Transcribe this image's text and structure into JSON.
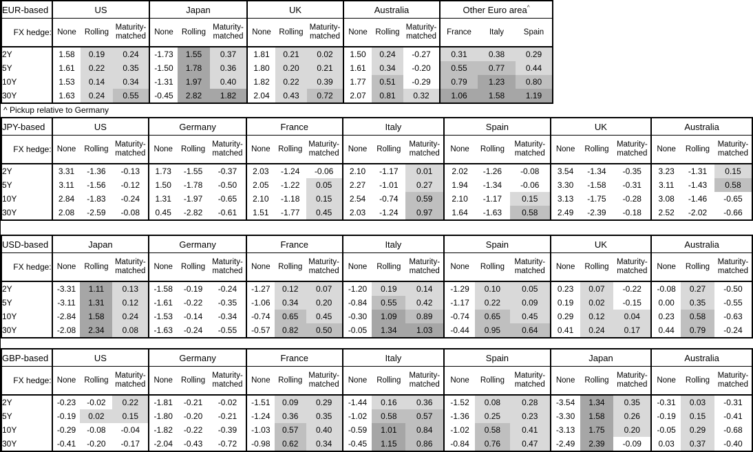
{
  "footnote": "^ Pickup relative to Germany",
  "labels": {
    "fx_hedge": "FX hedge:",
    "tenors": [
      "2Y",
      "5Y",
      "10Y",
      "30Y"
    ]
  },
  "colors": {
    "shade_low": "#d9d9d9",
    "shade_mid": "#bfbfbf",
    "shade_high": "#a6a6a6",
    "border": "#000000",
    "background": "#ffffff"
  },
  "tables": [
    {
      "base": "EUR-based",
      "groups": [
        {
          "name": "US",
          "cols": [
            "None",
            "Rolling",
            "Maturity-matched"
          ],
          "rows": [
            [
              "1.58",
              "0.19",
              "0.24"
            ],
            [
              "1.61",
              "0.22",
              "0.35"
            ],
            [
              "1.53",
              "0.14",
              "0.34"
            ],
            [
              "1.63",
              "0.24",
              "0.55"
            ]
          ]
        },
        {
          "name": "Japan",
          "cols": [
            "None",
            "Rolling",
            "Maturity-matched"
          ],
          "rows": [
            [
              "-1.73",
              "1.55",
              "0.37"
            ],
            [
              "-1.50",
              "1.78",
              "0.36"
            ],
            [
              "-1.31",
              "1.97",
              "0.40"
            ],
            [
              "-0.45",
              "2.82",
              "1.82"
            ]
          ]
        },
        {
          "name": "UK",
          "cols": [
            "None",
            "Rolling",
            "Maturity-matched"
          ],
          "rows": [
            [
              "1.81",
              "0.21",
              "0.02"
            ],
            [
              "1.80",
              "0.20",
              "0.21"
            ],
            [
              "1.82",
              "0.22",
              "0.39"
            ],
            [
              "2.04",
              "0.43",
              "0.72"
            ]
          ]
        },
        {
          "name": "Australia",
          "cols": [
            "None",
            "Rolling",
            "Maturity-matched"
          ],
          "rows": [
            [
              "1.50",
              "0.24",
              "-0.27"
            ],
            [
              "1.61",
              "0.34",
              "-0.20"
            ],
            [
              "1.77",
              "0.51",
              "-0.29"
            ],
            [
              "2.07",
              "0.81",
              "0.32"
            ]
          ]
        },
        {
          "name": "Other Euro area",
          "sup": "^",
          "cols": [
            "France",
            "Italy",
            "Spain"
          ],
          "rows": [
            [
              "0.31",
              "0.38",
              "0.29"
            ],
            [
              "0.55",
              "0.77",
              "0.44"
            ],
            [
              "0.79",
              "1.23",
              "0.80"
            ],
            [
              "1.06",
              "1.58",
              "1.19"
            ]
          ]
        }
      ]
    },
    {
      "base": "JPY-based",
      "groups": [
        {
          "name": "US",
          "cols": [
            "None",
            "Rolling",
            "Maturity-matched"
          ],
          "rows": [
            [
              "3.31",
              "-1.36",
              "-0.13"
            ],
            [
              "3.11",
              "-1.56",
              "-0.12"
            ],
            [
              "2.84",
              "-1.83",
              "-0.24"
            ],
            [
              "2.08",
              "-2.59",
              "-0.08"
            ]
          ]
        },
        {
          "name": "Germany",
          "cols": [
            "None",
            "Rolling",
            "Maturity-matched"
          ],
          "rows": [
            [
              "1.73",
              "-1.55",
              "-0.37"
            ],
            [
              "1.50",
              "-1.78",
              "-0.50"
            ],
            [
              "1.31",
              "-1.97",
              "-0.65"
            ],
            [
              "0.45",
              "-2.82",
              "-0.61"
            ]
          ]
        },
        {
          "name": "France",
          "cols": [
            "None",
            "Rolling",
            "Maturity-matched"
          ],
          "rows": [
            [
              "2.03",
              "-1.24",
              "-0.06"
            ],
            [
              "2.05",
              "-1.22",
              "0.05"
            ],
            [
              "2.10",
              "-1.18",
              "0.15"
            ],
            [
              "1.51",
              "-1.77",
              "0.45"
            ]
          ]
        },
        {
          "name": "Italy",
          "cols": [
            "None",
            "Rolling",
            "Maturity-matched"
          ],
          "rows": [
            [
              "2.10",
              "-1.17",
              "0.01"
            ],
            [
              "2.27",
              "-1.01",
              "0.27"
            ],
            [
              "2.54",
              "-0.74",
              "0.59"
            ],
            [
              "2.03",
              "-1.24",
              "0.97"
            ]
          ]
        },
        {
          "name": "Spain",
          "cols": [
            "None",
            "Rolling",
            "Maturity-matched"
          ],
          "rows": [
            [
              "2.02",
              "-1.26",
              "-0.08"
            ],
            [
              "1.94",
              "-1.34",
              "-0.06"
            ],
            [
              "2.10",
              "-1.17",
              "0.15"
            ],
            [
              "1.64",
              "-1.63",
              "0.58"
            ]
          ]
        },
        {
          "name": "UK",
          "cols": [
            "None",
            "Rolling",
            "Maturity-matched"
          ],
          "rows": [
            [
              "3.54",
              "-1.34",
              "-0.35"
            ],
            [
              "3.30",
              "-1.58",
              "-0.31"
            ],
            [
              "3.13",
              "-1.75",
              "-0.28"
            ],
            [
              "2.49",
              "-2.39",
              "-0.18"
            ]
          ]
        },
        {
          "name": "Australia",
          "cols": [
            "None",
            "Rolling",
            "Maturity-matched"
          ],
          "rows": [
            [
              "3.23",
              "-1.31",
              "0.15"
            ],
            [
              "3.11",
              "-1.43",
              "0.58"
            ],
            [
              "3.08",
              "-1.46",
              "-0.65"
            ],
            [
              "2.52",
              "-2.02",
              "-0.66"
            ]
          ]
        }
      ]
    },
    {
      "base": "USD-based",
      "groups": [
        {
          "name": "Japan",
          "cols": [
            "None",
            "Rolling",
            "Maturity-matched"
          ],
          "rows": [
            [
              "-3.31",
              "1.11",
              "0.13"
            ],
            [
              "-3.11",
              "1.31",
              "0.12"
            ],
            [
              "-2.84",
              "1.58",
              "0.24"
            ],
            [
              "-2.08",
              "2.34",
              "0.08"
            ]
          ]
        },
        {
          "name": "Germany",
          "cols": [
            "None",
            "Rolling",
            "Maturity-matched"
          ],
          "rows": [
            [
              "-1.58",
              "-0.19",
              "-0.24"
            ],
            [
              "-1.61",
              "-0.22",
              "-0.35"
            ],
            [
              "-1.53",
              "-0.14",
              "-0.34"
            ],
            [
              "-1.63",
              "-0.24",
              "-0.55"
            ]
          ]
        },
        {
          "name": "France",
          "cols": [
            "None",
            "Rolling",
            "Maturity-matched"
          ],
          "rows": [
            [
              "-1.27",
              "0.12",
              "0.07"
            ],
            [
              "-1.06",
              "0.34",
              "0.20"
            ],
            [
              "-0.74",
              "0.65",
              "0.45"
            ],
            [
              "-0.57",
              "0.82",
              "0.50"
            ]
          ]
        },
        {
          "name": "Italy",
          "cols": [
            "None",
            "Rolling",
            "Maturity-matched"
          ],
          "rows": [
            [
              "-1.20",
              "0.19",
              "0.14"
            ],
            [
              "-0.84",
              "0.55",
              "0.42"
            ],
            [
              "-0.30",
              "1.09",
              "0.89"
            ],
            [
              "-0.05",
              "1.34",
              "1.03"
            ]
          ]
        },
        {
          "name": "Spain",
          "cols": [
            "None",
            "Rolling",
            "Maturity-matched"
          ],
          "rows": [
            [
              "-1.29",
              "0.10",
              "0.05"
            ],
            [
              "-1.17",
              "0.22",
              "0.09"
            ],
            [
              "-0.74",
              "0.65",
              "0.45"
            ],
            [
              "-0.44",
              "0.95",
              "0.64"
            ]
          ]
        },
        {
          "name": "UK",
          "cols": [
            "None",
            "Rolling",
            "Maturity-matched"
          ],
          "rows": [
            [
              "0.23",
              "0.07",
              "-0.22"
            ],
            [
              "0.19",
              "0.02",
              "-0.15"
            ],
            [
              "0.29",
              "0.12",
              "0.04"
            ],
            [
              "0.41",
              "0.24",
              "0.17"
            ]
          ]
        },
        {
          "name": "Australia",
          "cols": [
            "None",
            "Rolling",
            "Maturity-matched"
          ],
          "rows": [
            [
              "-0.08",
              "0.27",
              "-0.50"
            ],
            [
              "0.00",
              "0.35",
              "-0.55"
            ],
            [
              "0.23",
              "0.58",
              "-0.63"
            ],
            [
              "0.44",
              "0.79",
              "-0.24"
            ]
          ]
        }
      ]
    },
    {
      "base": "GBP-based",
      "groups": [
        {
          "name": "US",
          "cols": [
            "None",
            "Rolling",
            "Maturity-matched"
          ],
          "rows": [
            [
              "-0.23",
              "-0.02",
              "0.22"
            ],
            [
              "-0.19",
              "0.02",
              "0.15"
            ],
            [
              "-0.29",
              "-0.08",
              "-0.04"
            ],
            [
              "-0.41",
              "-0.20",
              "-0.17"
            ]
          ]
        },
        {
          "name": "Germany",
          "cols": [
            "None",
            "Rolling",
            "Maturity-matched"
          ],
          "rows": [
            [
              "-1.81",
              "-0.21",
              "-0.02"
            ],
            [
              "-1.80",
              "-0.20",
              "-0.21"
            ],
            [
              "-1.82",
              "-0.22",
              "-0.39"
            ],
            [
              "-2.04",
              "-0.43",
              "-0.72"
            ]
          ]
        },
        {
          "name": "France",
          "cols": [
            "None",
            "Rolling",
            "Maturity-matched"
          ],
          "rows": [
            [
              "-1.51",
              "0.09",
              "0.29"
            ],
            [
              "-1.24",
              "0.36",
              "0.35"
            ],
            [
              "-1.03",
              "0.57",
              "0.40"
            ],
            [
              "-0.98",
              "0.62",
              "0.34"
            ]
          ]
        },
        {
          "name": "Italy",
          "cols": [
            "None",
            "Rolling",
            "Maturity-matched"
          ],
          "rows": [
            [
              "-1.44",
              "0.16",
              "0.36"
            ],
            [
              "-1.02",
              "0.58",
              "0.57"
            ],
            [
              "-0.59",
              "1.01",
              "0.84"
            ],
            [
              "-0.45",
              "1.15",
              "0.86"
            ]
          ]
        },
        {
          "name": "Spain",
          "cols": [
            "None",
            "Rolling",
            "Maturity-matched"
          ],
          "rows": [
            [
              "-1.52",
              "0.08",
              "0.28"
            ],
            [
              "-1.36",
              "0.25",
              "0.23"
            ],
            [
              "-1.02",
              "0.58",
              "0.41"
            ],
            [
              "-0.84",
              "0.76",
              "0.47"
            ]
          ]
        },
        {
          "name": "Japan",
          "cols": [
            "None",
            "Rolling",
            "Maturity-matched"
          ],
          "rows": [
            [
              "-3.54",
              "1.34",
              "0.35"
            ],
            [
              "-3.30",
              "1.58",
              "0.26"
            ],
            [
              "-3.13",
              "1.75",
              "0.20"
            ],
            [
              "-2.49",
              "2.39",
              "-0.09"
            ]
          ]
        },
        {
          "name": "Australia",
          "cols": [
            "None",
            "Rolling",
            "Maturity-matched"
          ],
          "rows": [
            [
              "-0.31",
              "0.03",
              "-0.31"
            ],
            [
              "-0.19",
              "0.15",
              "-0.41"
            ],
            [
              "-0.05",
              "0.29",
              "-0.68"
            ],
            [
              "0.03",
              "0.37",
              "-0.40"
            ]
          ]
        }
      ]
    }
  ]
}
